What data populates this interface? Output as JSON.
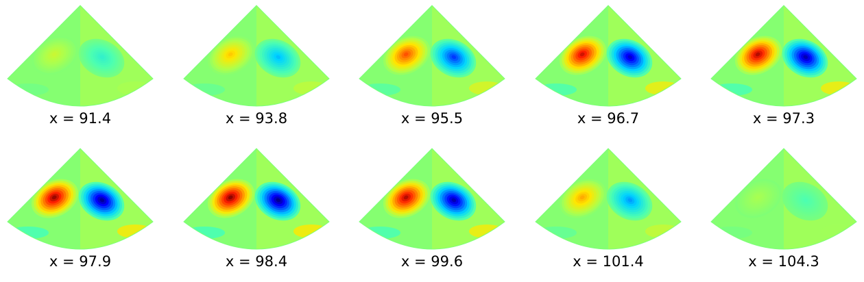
{
  "chart_data": {
    "type": "heatmap",
    "colormap": "jet",
    "panels": [
      {
        "label": "x = 91.4",
        "x": 91.4,
        "amplitude": 0.18
      },
      {
        "label": "x = 93.8",
        "x": 93.8,
        "amplitude": 0.38
      },
      {
        "label": "x = 95.5",
        "x": 95.5,
        "amplitude": 0.65
      },
      {
        "label": "x = 96.7",
        "x": 96.7,
        "amplitude": 0.85
      },
      {
        "label": "x = 97.3",
        "x": 97.3,
        "amplitude": 0.9
      },
      {
        "label": "x = 97.9",
        "x": 97.9,
        "amplitude": 0.95
      },
      {
        "label": "x = 98.4",
        "x": 98.4,
        "amplitude": 0.97
      },
      {
        "label": "x = 99.6",
        "x": 99.6,
        "amplitude": 0.9
      },
      {
        "label": "x = 101.4",
        "x": 101.4,
        "amplitude": 0.45
      },
      {
        "label": "x = 104.3",
        "x": 104.3,
        "amplitude": 0.1
      }
    ]
  }
}
